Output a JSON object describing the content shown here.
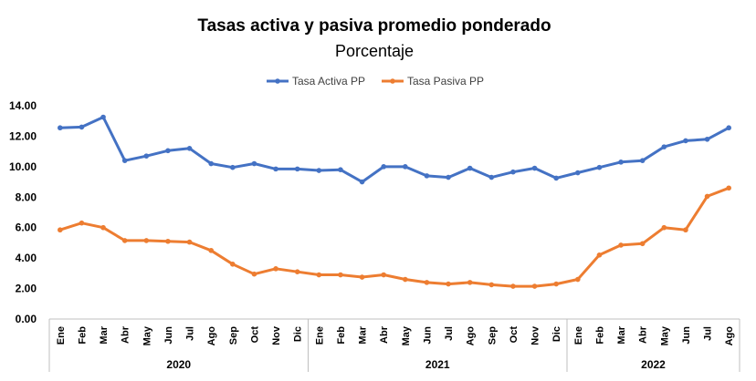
{
  "chart_data": {
    "type": "line",
    "title": "Tasas activa y pasiva promedio ponderado",
    "subtitle": "Porcentaje",
    "legend_position": "top-center",
    "grid": false,
    "ylim": [
      0,
      14
    ],
    "yticks": [
      "0.00",
      "2.00",
      "4.00",
      "6.00",
      "8.00",
      "10.00",
      "12.00",
      "14.00"
    ],
    "categories": [
      "Ene",
      "Feb",
      "Mar",
      "Abr",
      "May",
      "Jun",
      "Jul",
      "Ago",
      "Sep",
      "Oct",
      "Nov",
      "Dic",
      "Ene",
      "Feb",
      "Mar",
      "Abr",
      "May",
      "Jun",
      "Jul",
      "Ago",
      "Sep",
      "Oct",
      "Nov",
      "Dic",
      "Ene",
      "Feb",
      "Mar",
      "Abr",
      "May",
      "Jun",
      "Jul",
      "Ago"
    ],
    "years": [
      {
        "label": "2020",
        "count": 12
      },
      {
        "label": "2021",
        "count": 12
      },
      {
        "label": "2022",
        "count": 8
      }
    ],
    "series": [
      {
        "name": "Tasa Activa PP",
        "color": "#4472C4",
        "values": [
          12.55,
          12.6,
          13.25,
          10.4,
          10.7,
          11.05,
          11.2,
          10.2,
          9.95,
          10.2,
          9.85,
          9.85,
          9.75,
          9.8,
          9.0,
          10.0,
          10.0,
          9.4,
          9.3,
          9.9,
          9.3,
          9.65,
          9.9,
          9.25,
          9.6,
          9.95,
          10.3,
          10.4,
          11.3,
          11.7,
          11.8,
          12.55
        ]
      },
      {
        "name": "Tasa Pasiva PP",
        "color": "#ED7D31",
        "values": [
          5.85,
          6.3,
          6.0,
          5.15,
          5.15,
          5.1,
          5.05,
          4.5,
          3.6,
          2.95,
          3.3,
          3.1,
          2.9,
          2.9,
          2.75,
          2.9,
          2.6,
          2.4,
          2.3,
          2.4,
          2.25,
          2.15,
          2.15,
          2.3,
          2.6,
          4.2,
          4.85,
          4.95,
          6.0,
          5.85,
          8.05,
          8.6
        ]
      }
    ]
  }
}
